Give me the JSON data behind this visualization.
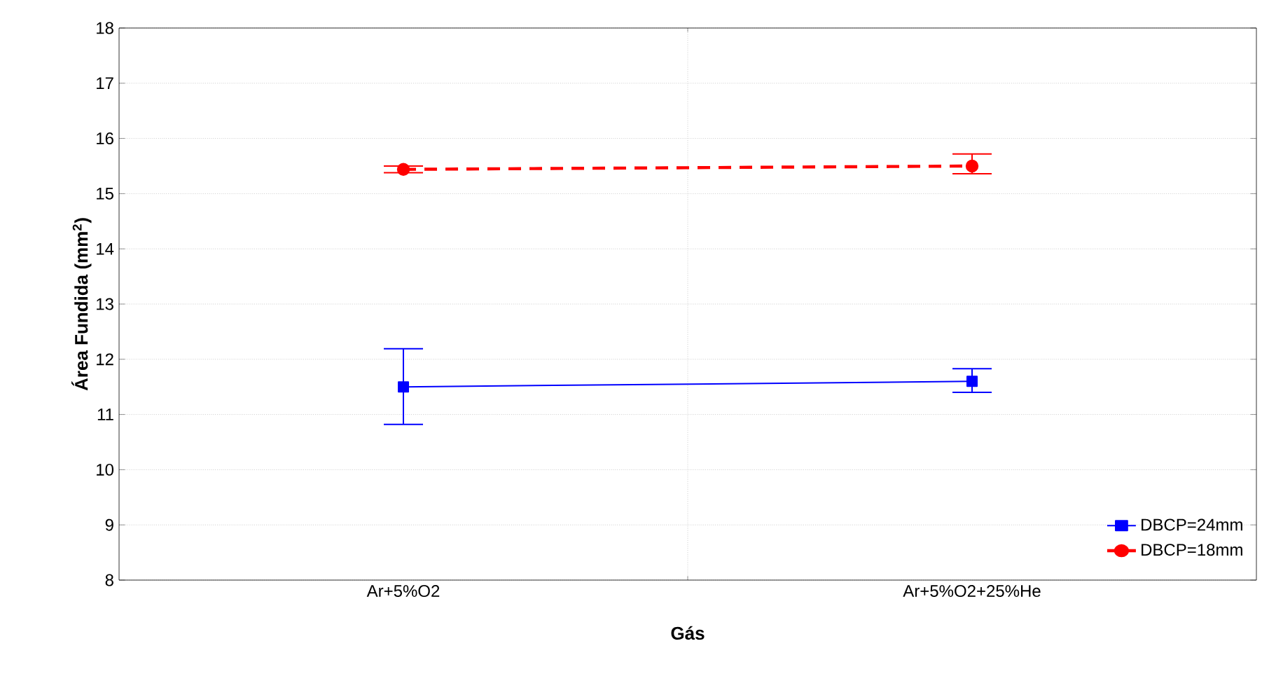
{
  "chart_data": {
    "type": "line",
    "xlabel": "Gás",
    "ylabel": "Área Fundida (mm$^{2}$)",
    "categories": [
      "Ar+5%O2",
      "Ar+5%O2+25%He"
    ],
    "series": [
      {
        "name": "DBCP=24mm",
        "color": "#0000ff",
        "marker": "square",
        "line_style": "solid",
        "values": [
          11.5,
          11.6
        ],
        "errors": [
          [
            10.82,
            12.19
          ],
          [
            11.4,
            11.83
          ]
        ]
      },
      {
        "name": "DBCP=18mm",
        "color": "#ff0000",
        "marker": "circle",
        "line_style": "dashed",
        "values": [
          15.44,
          15.5
        ],
        "errors": [
          [
            15.38,
            15.5
          ],
          [
            15.36,
            15.72
          ]
        ]
      }
    ],
    "ylim": [
      8,
      18
    ],
    "yticks": [
      8,
      9,
      10,
      11,
      12,
      13,
      14,
      15,
      16,
      17,
      18
    ],
    "grid": true,
    "legend": "bottom right"
  }
}
